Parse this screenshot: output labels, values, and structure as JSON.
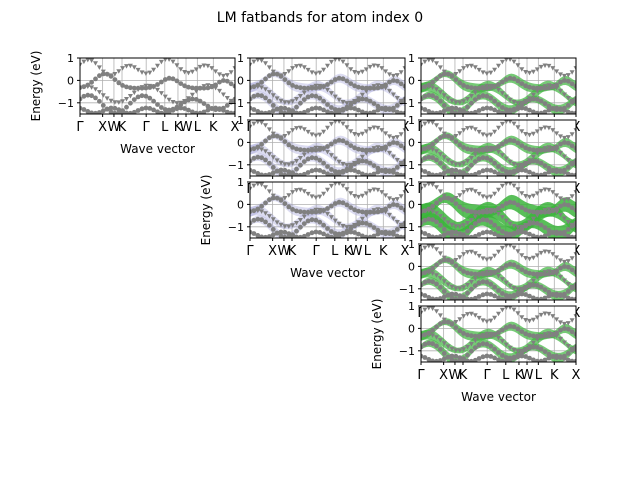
{
  "figure": {
    "title": "LM fatbands for atom index 0",
    "colors": {
      "band": "#808080",
      "fat_main": "#3cb43c",
      "fat_faint": "#9b9bd6",
      "grid": "#b0b0b0",
      "frame": "#000000"
    }
  },
  "chart_data": [
    {
      "type": "scatter",
      "panel": "column 1, row 1",
      "xlabel": "Wave vector",
      "ylabel": "Energy (eV)",
      "ylim": [
        -1.5,
        1.0
      ],
      "yticks": [
        1,
        0,
        -1
      ],
      "xticks": [
        "Γ",
        "X",
        "W",
        "K",
        "Γ",
        "L",
        "K",
        "W",
        "L",
        "K",
        "X"
      ],
      "grid": true,
      "fat_weight": "none"
    },
    {
      "type": "scatter",
      "panel": "column 2, row 1",
      "xlabel": "",
      "ylabel": "",
      "ylim": [
        -1.5,
        1.0
      ],
      "yticks": [
        1,
        0,
        -1
      ],
      "xticks": [
        "Γ",
        "X",
        "W",
        "K",
        "Γ",
        "L",
        "K",
        "W",
        "L",
        "K",
        "X"
      ],
      "grid": true,
      "fat_weight": "faint"
    },
    {
      "type": "scatter",
      "panel": "column 2, row 2",
      "xlabel": "",
      "ylabel": "",
      "ylim": [
        -1.5,
        1.0
      ],
      "yticks": [
        1,
        0,
        -1
      ],
      "xticks": [
        "Γ",
        "X",
        "W",
        "K",
        "Γ",
        "L",
        "K",
        "W",
        "L",
        "K",
        "X"
      ],
      "grid": true,
      "fat_weight": "faint"
    },
    {
      "type": "scatter",
      "panel": "column 2, row 3",
      "xlabel": "Wave vector",
      "ylabel": "Energy (eV)",
      "ylim": [
        -1.5,
        1.0
      ],
      "yticks": [
        1,
        0,
        -1
      ],
      "xticks": [
        "Γ",
        "X",
        "W",
        "K",
        "Γ",
        "L",
        "K",
        "W",
        "L",
        "K",
        "X"
      ],
      "grid": true,
      "fat_weight": "faint"
    },
    {
      "type": "scatter",
      "panel": "column 3, row 1",
      "xlabel": "",
      "ylabel": "",
      "ylim": [
        -1.5,
        1.0
      ],
      "yticks": [
        1,
        0,
        -1
      ],
      "xticks": [
        "Γ",
        "X",
        "W",
        "K",
        "Γ",
        "L",
        "K",
        "W",
        "L",
        "K",
        "X"
      ],
      "grid": true,
      "fat_weight": "green"
    },
    {
      "type": "scatter",
      "panel": "column 3, row 2",
      "xlabel": "",
      "ylabel": "",
      "ylim": [
        -1.5,
        1.0
      ],
      "yticks": [
        1,
        0,
        -1
      ],
      "xticks": [
        "Γ",
        "X",
        "W",
        "K",
        "Γ",
        "L",
        "K",
        "W",
        "L",
        "K",
        "X"
      ],
      "grid": true,
      "fat_weight": "green"
    },
    {
      "type": "scatter",
      "panel": "column 3, row 3",
      "xlabel": "",
      "ylabel": "",
      "ylim": [
        -1.5,
        1.0
      ],
      "yticks": [
        1,
        0,
        -1
      ],
      "xticks": [
        "Γ",
        "X",
        "W",
        "K",
        "Γ",
        "L",
        "K",
        "W",
        "L",
        "K",
        "X"
      ],
      "grid": true,
      "fat_weight": "strong"
    },
    {
      "type": "scatter",
      "panel": "column 3, row 4",
      "xlabel": "",
      "ylabel": "",
      "ylim": [
        -1.5,
        1.0
      ],
      "yticks": [
        1,
        0,
        -1
      ],
      "xticks": [
        "Γ",
        "X",
        "W",
        "K",
        "Γ",
        "L",
        "K",
        "W",
        "L",
        "K",
        "X"
      ],
      "grid": true,
      "fat_weight": "green"
    },
    {
      "type": "scatter",
      "panel": "column 3, row 5",
      "xlabel": "Wave vector",
      "ylabel": "Energy (eV)",
      "ylim": [
        -1.5,
        1.0
      ],
      "yticks": [
        1,
        0,
        -1
      ],
      "xticks": [
        "Γ",
        "X",
        "W",
        "K",
        "Γ",
        "L",
        "K",
        "W",
        "L",
        "K",
        "X"
      ],
      "grid": true,
      "fat_weight": "green"
    }
  ]
}
